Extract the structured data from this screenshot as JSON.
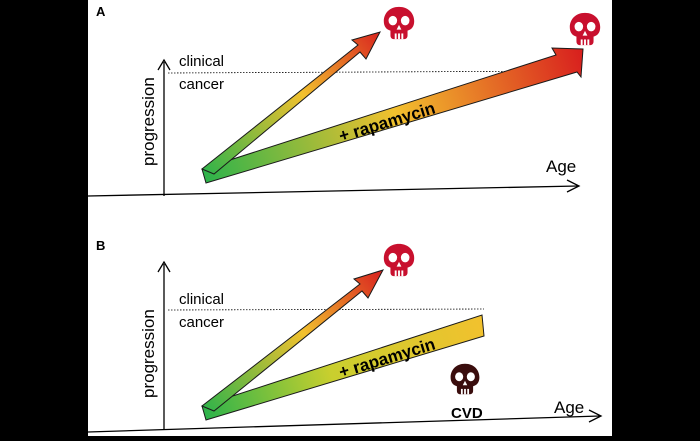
{
  "panels": [
    {
      "letter": "A",
      "y_label": "progression",
      "x_label": "Age",
      "threshold_label_1": "clinical",
      "threshold_label_2": "cancer",
      "treatment_label": "+ rapamycin"
    },
    {
      "letter": "B",
      "y_label": "progression",
      "x_label": "Age",
      "threshold_label_1": "clinical",
      "threshold_label_2": "cancer",
      "treatment_label": "+ rapamycin",
      "cvd_label": "CVD"
    }
  ],
  "colors": {
    "gradient_start": "#2fb34a",
    "gradient_mid": "#f2c12e",
    "gradient_end": "#d81e1e",
    "skull_red": "#c8102e",
    "skull_dark": "#3a0d0d",
    "background": "#000000",
    "panel": "#ffffff"
  },
  "icons": [
    "skull-icon",
    "cvd-skull-icon"
  ]
}
